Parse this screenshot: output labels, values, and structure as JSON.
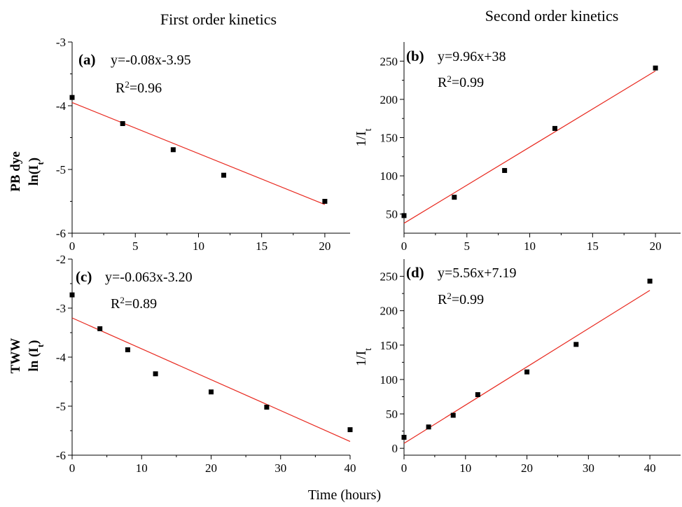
{
  "figure": {
    "col_titles": [
      "First order kinetics",
      "Second order kinetics"
    ],
    "row_labels": [
      [
        "PB dye",
        "ln(I<sub>t</sub>)"
      ],
      [
        "TWW",
        "ln (I<sub>t</sub>)"
      ]
    ],
    "xlabel": "Time (hours)"
  },
  "chart_data": [
    {
      "id": "a",
      "type": "scatter",
      "panel_label": "(a)",
      "equation": "y=-0.08x-3.95",
      "r2": "0.96",
      "ylabel": "",
      "xlim": [
        0,
        22
      ],
      "ylim": [
        -6,
        -3
      ],
      "xticks": [
        0,
        5,
        10,
        15,
        20
      ],
      "yticks": [
        -6,
        -5,
        -4,
        -3
      ],
      "x": [
        0,
        4,
        8,
        12,
        20
      ],
      "y": [
        -3.87,
        -4.28,
        -4.69,
        -5.09,
        -5.5
      ],
      "fit": {
        "slope": -0.08,
        "intercept": -3.95,
        "x_range": [
          0,
          20
        ]
      }
    },
    {
      "id": "b",
      "type": "scatter",
      "panel_label": "(b)",
      "equation": "y=9.96x+38",
      "r2": "0.99",
      "ylabel": "1/I",
      "ylabel_sub": "t",
      "xlim": [
        0,
        22
      ],
      "ylim": [
        25,
        275
      ],
      "xticks": [
        0,
        5,
        10,
        15,
        20
      ],
      "yticks": [
        50,
        100,
        150,
        200,
        250
      ],
      "x": [
        0,
        4,
        8,
        12,
        20
      ],
      "y": [
        48,
        72,
        107,
        162,
        241
      ],
      "fit": {
        "slope": 9.96,
        "intercept": 38,
        "x_range": [
          0,
          20
        ]
      }
    },
    {
      "id": "c",
      "type": "scatter",
      "panel_label": "(c)",
      "equation": "y=-0.063x-3.20",
      "r2": "0.89",
      "ylabel": "",
      "xlim": [
        0,
        40
      ],
      "ylim": [
        -6,
        -2
      ],
      "xticks": [
        0,
        10,
        20,
        30,
        40
      ],
      "yticks": [
        -6,
        -5,
        -4,
        -3,
        -2
      ],
      "x": [
        0,
        4,
        8,
        12,
        20,
        28,
        40
      ],
      "y": [
        -2.73,
        -3.42,
        -3.85,
        -4.34,
        -4.71,
        -5.02,
        -5.48
      ],
      "fit": {
        "slope": -0.063,
        "intercept": -3.2,
        "x_range": [
          0,
          40
        ]
      }
    },
    {
      "id": "d",
      "type": "scatter",
      "panel_label": "(d)",
      "equation": "y=5.56x+7.19",
      "r2": "0.99",
      "ylabel": "1/I",
      "ylabel_sub": "t",
      "xlim": [
        0,
        45
      ],
      "ylim": [
        -10,
        275
      ],
      "xticks": [
        0,
        10,
        20,
        30,
        40
      ],
      "yticks": [
        0,
        50,
        100,
        150,
        200,
        250
      ],
      "x": [
        0,
        4,
        8,
        12,
        20,
        28,
        40
      ],
      "y": [
        16,
        31,
        48,
        78,
        111,
        151,
        243
      ],
      "fit": {
        "slope": 5.56,
        "intercept": 7.19,
        "x_range": [
          0,
          40
        ]
      }
    }
  ]
}
